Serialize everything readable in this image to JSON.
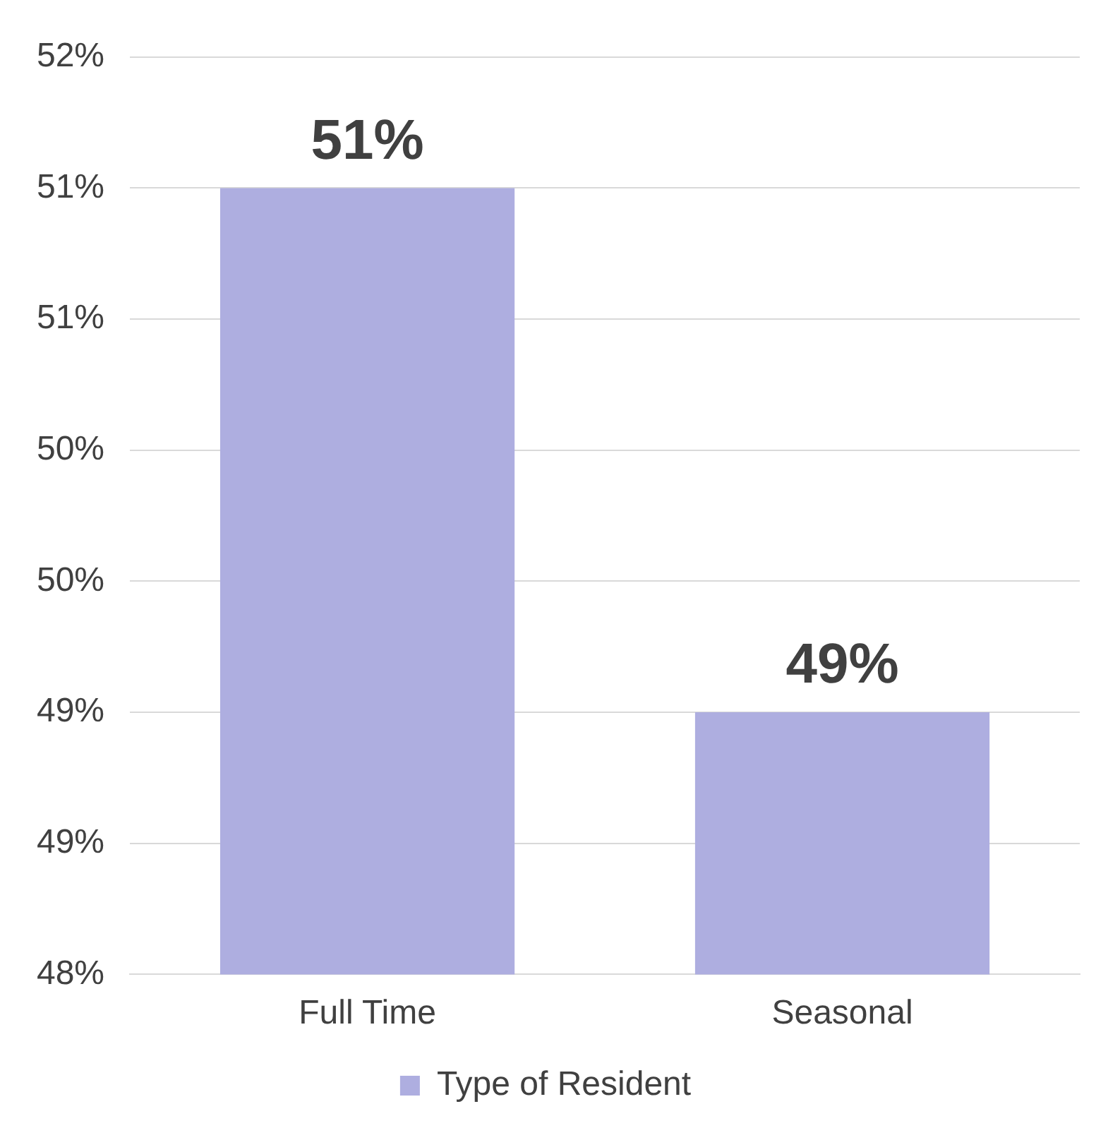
{
  "chart_data": {
    "type": "bar",
    "categories": [
      "Full Time",
      "Seasonal"
    ],
    "series": [
      {
        "name": "Type of Resident",
        "color": "#aeaee0",
        "values": [
          51,
          49
        ],
        "value_labels": [
          "51%",
          "49%"
        ]
      }
    ],
    "ylim": [
      48,
      51.5
    ],
    "yticks": [
      {
        "value": 48,
        "label": "48%"
      },
      {
        "value": 48.5,
        "label": "49%"
      },
      {
        "value": 49,
        "label": "49%"
      },
      {
        "value": 49.5,
        "label": "50%"
      },
      {
        "value": 50,
        "label": "50%"
      },
      {
        "value": 50.5,
        "label": "51%"
      },
      {
        "value": 51,
        "label": "51%"
      },
      {
        "value": 51.5,
        "label": "52%"
      }
    ],
    "grid": "y",
    "legend": "bottom"
  }
}
